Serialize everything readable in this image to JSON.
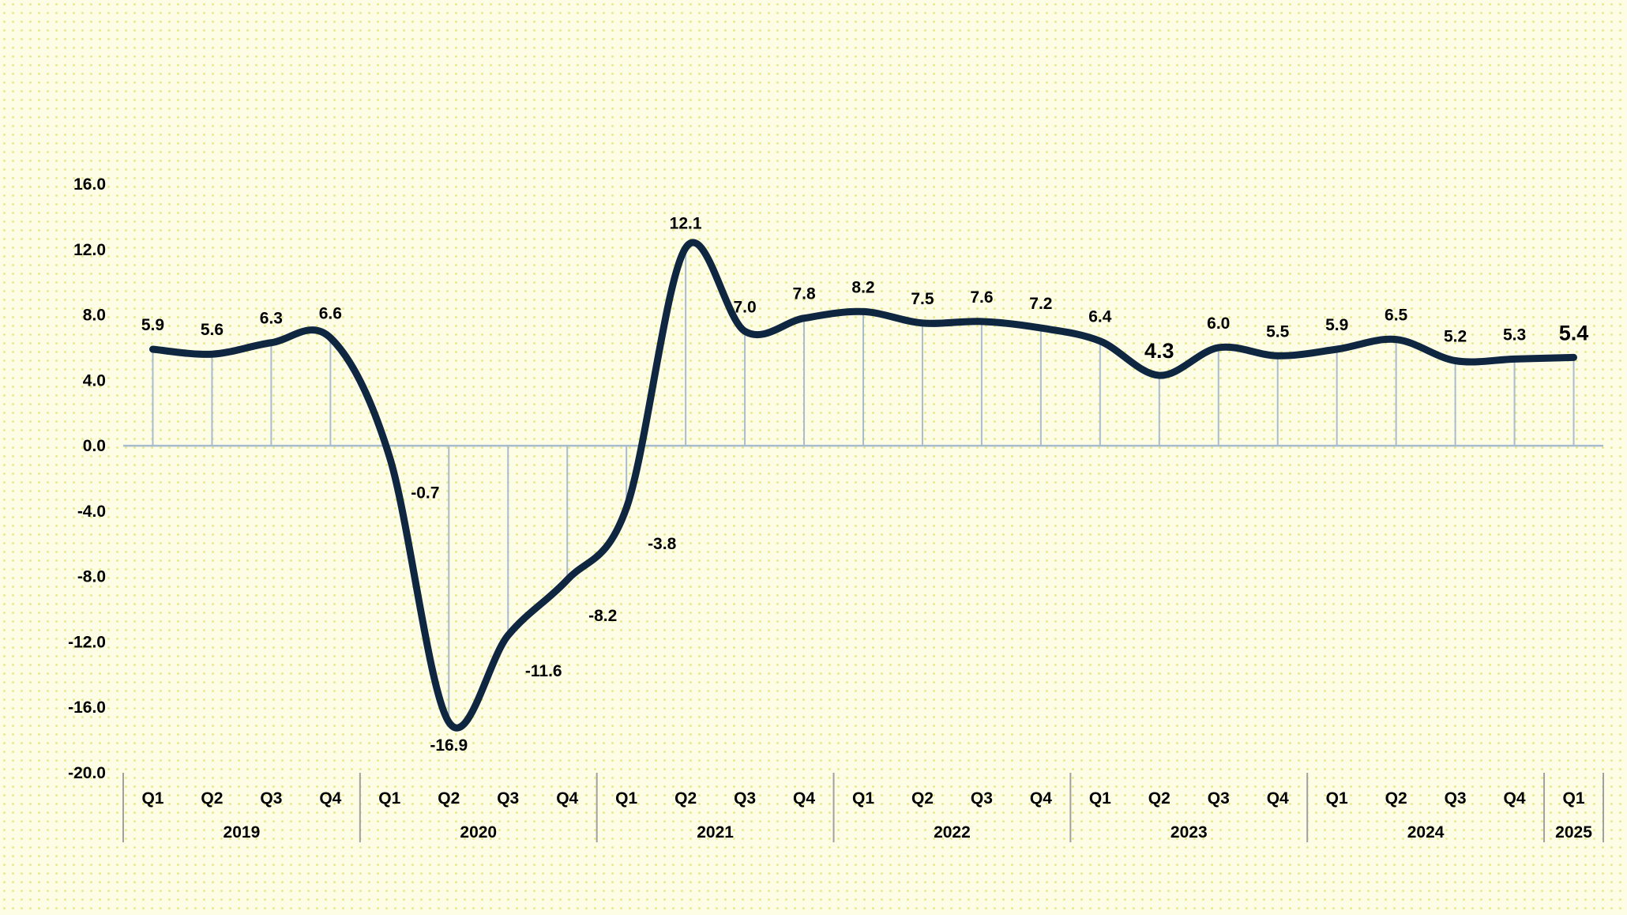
{
  "chart_data": {
    "type": "line",
    "title": "",
    "xlabel": "",
    "ylabel": "",
    "ylim": [
      -20,
      16
    ],
    "yticks": [
      "16.0",
      "12.0",
      "8.0",
      "4.0",
      "0.0",
      "-4.0",
      "-8.0",
      "-12.0",
      "-16.0",
      "-20.0"
    ],
    "grid": false,
    "legend": "none",
    "line_color": "#0f2641",
    "drop_line_color": "#a9bccd",
    "categories": [
      "Q1",
      "Q2",
      "Q3",
      "Q4",
      "Q1",
      "Q2",
      "Q3",
      "Q4",
      "Q1",
      "Q2",
      "Q3",
      "Q4",
      "Q1",
      "Q2",
      "Q3",
      "Q4",
      "Q1",
      "Q2",
      "Q3",
      "Q4",
      "Q1",
      "Q2",
      "Q3",
      "Q4",
      "Q1"
    ],
    "years": [
      {
        "label": "2019",
        "quarters": 4
      },
      {
        "label": "2020",
        "quarters": 4
      },
      {
        "label": "2021",
        "quarters": 4
      },
      {
        "label": "2022",
        "quarters": 4
      },
      {
        "label": "2023",
        "quarters": 4
      },
      {
        "label": "2024",
        "quarters": 4
      },
      {
        "label": "2025",
        "quarters": 1
      }
    ],
    "values": [
      5.9,
      5.6,
      6.3,
      6.6,
      -0.7,
      -16.9,
      -11.6,
      -8.2,
      -3.8,
      12.1,
      7.0,
      7.8,
      8.2,
      7.5,
      7.6,
      7.2,
      6.4,
      4.3,
      6.0,
      5.5,
      5.9,
      6.5,
      5.2,
      5.3,
      5.4
    ],
    "data_labels": [
      "5.9",
      "5.6",
      "6.3",
      "6.6",
      "-0.7",
      "-16.9",
      "-11.6",
      "-8.2",
      "-3.8",
      "12.1",
      "7.0",
      "7.8",
      "8.2",
      "7.5",
      "7.6",
      "7.2",
      "6.4",
      "4.3",
      "6.0",
      "5.5",
      "5.9",
      "6.5",
      "5.2",
      "5.3",
      "5.4"
    ],
    "emphasized_labels": [
      17,
      24
    ]
  }
}
